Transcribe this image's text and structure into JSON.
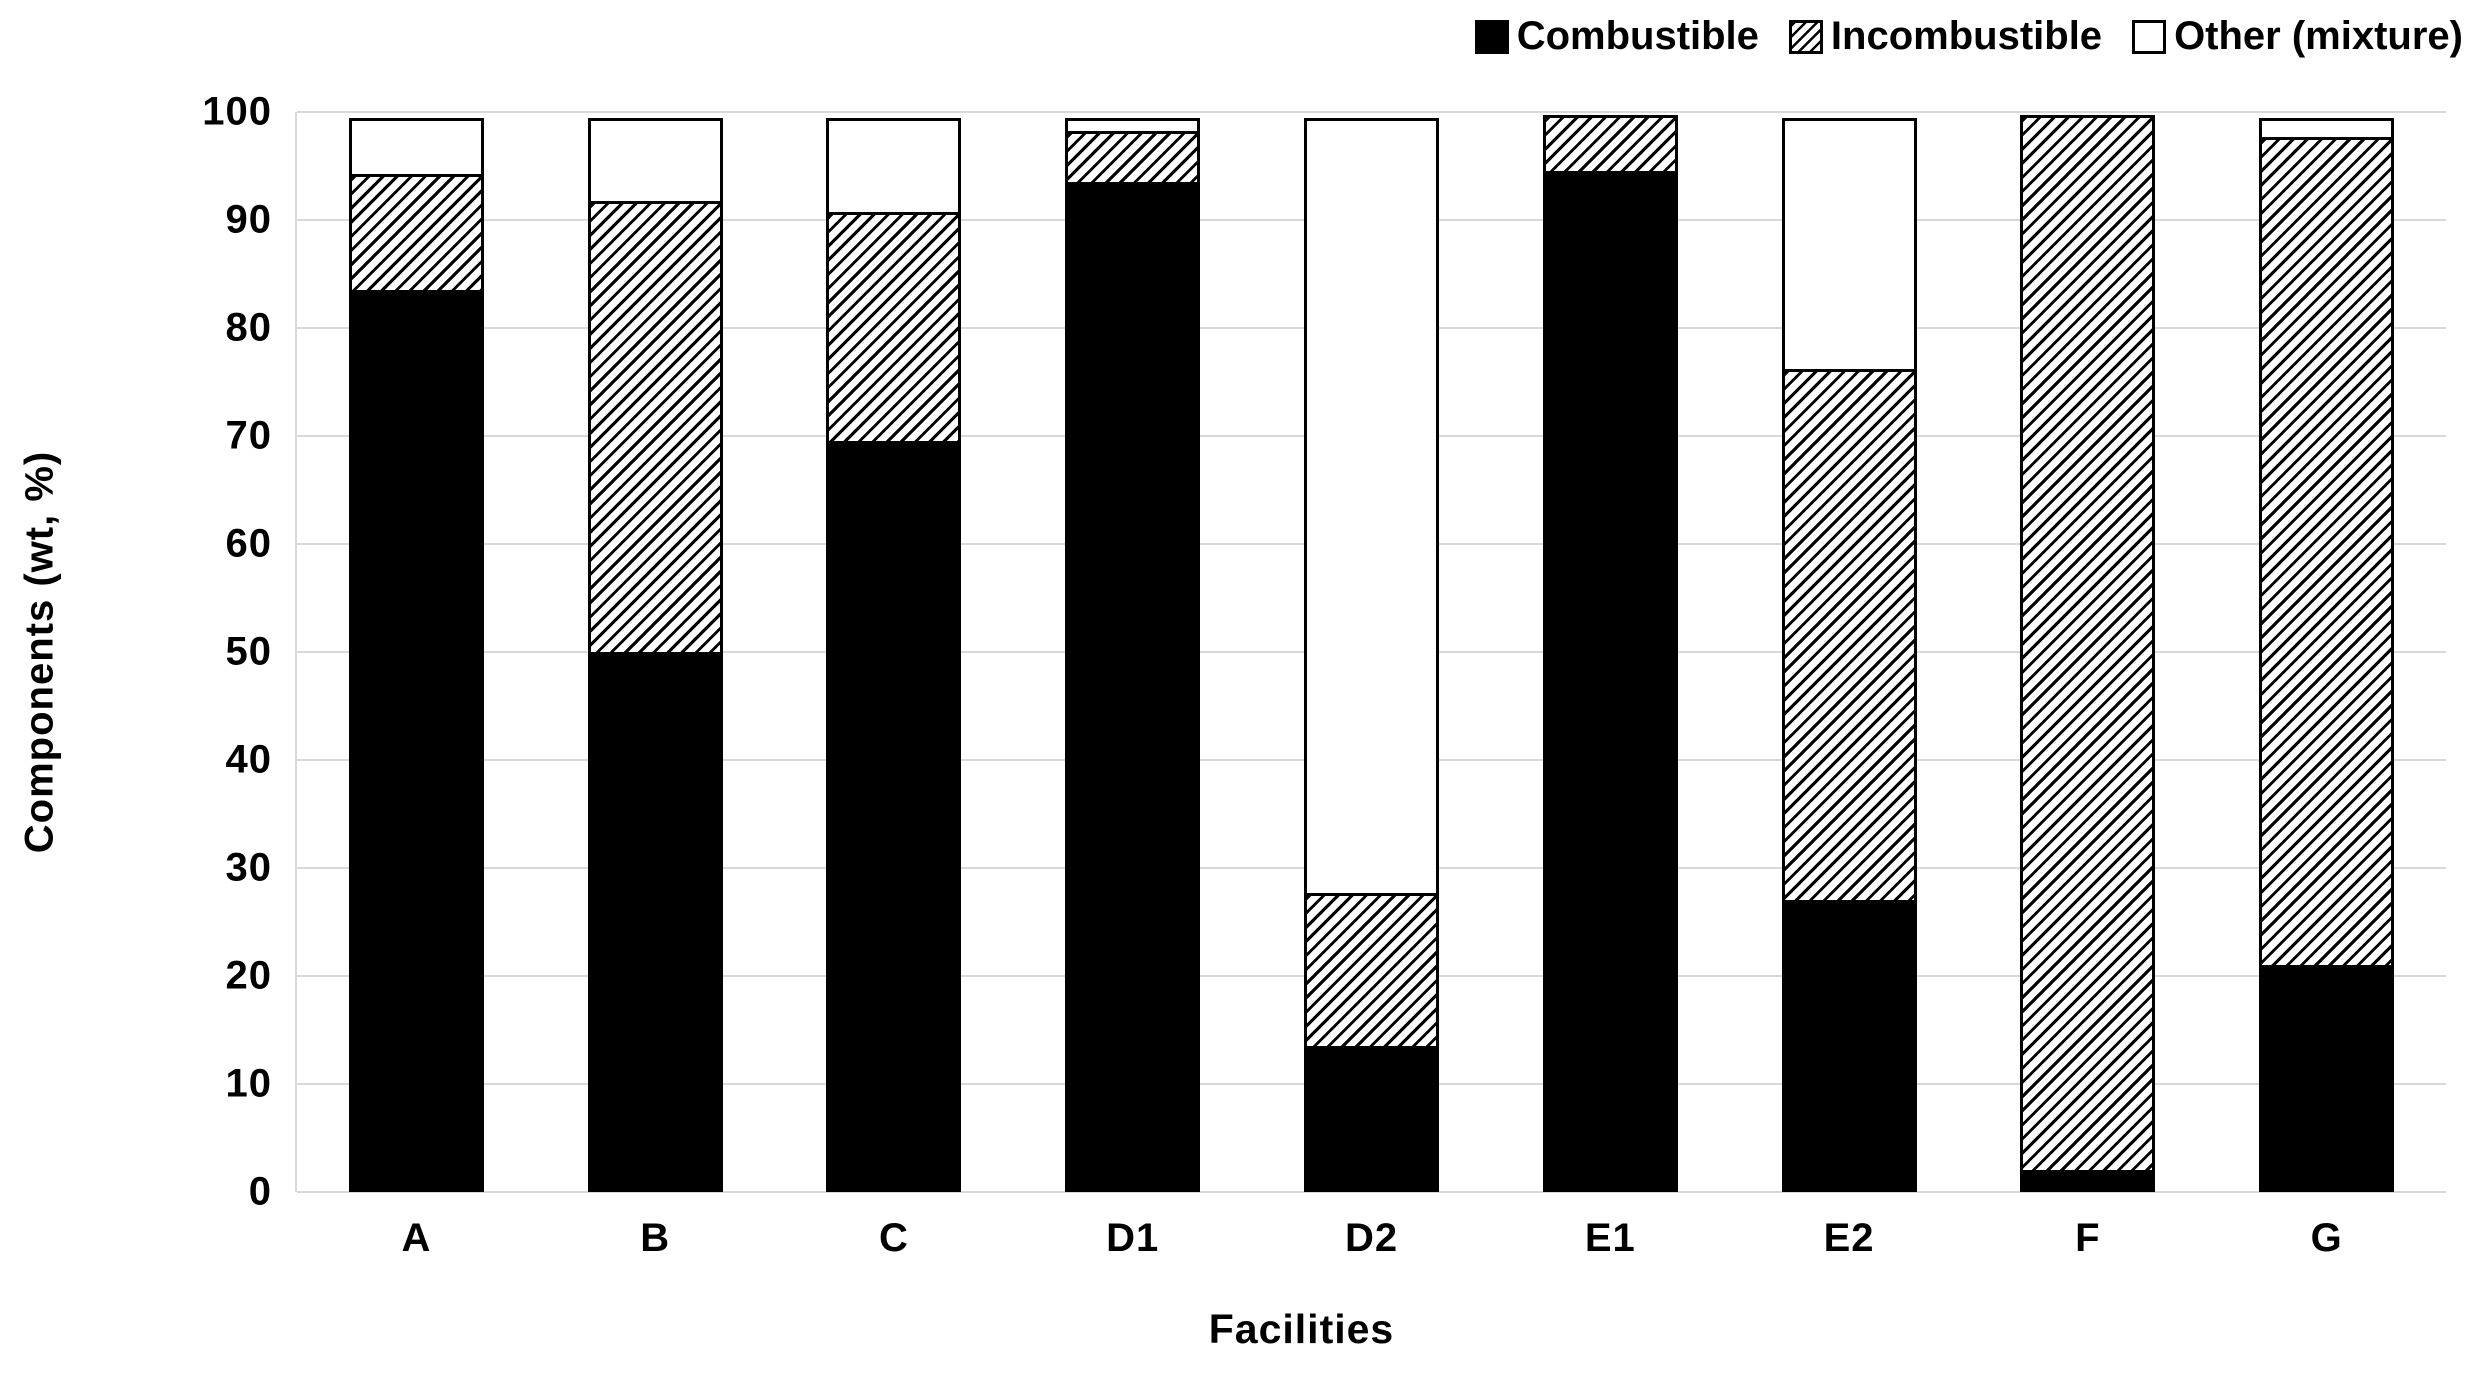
{
  "chart_data": {
    "type": "bar",
    "stacked": true,
    "title": "",
    "xlabel": "Facilities",
    "ylabel": "Components (wt, %)",
    "categories": [
      "A",
      "B",
      "C",
      "D1",
      "D2",
      "E1",
      "E2",
      "F",
      "G"
    ],
    "series": [
      {
        "name": "Combustible",
        "pattern": "solid",
        "values": [
          83.5,
          50,
          69.5,
          93.5,
          13.5,
          94.5,
          27,
          2,
          21
        ]
      },
      {
        "name": "Incombustible",
        "pattern": "hatch",
        "values": [
          11,
          42,
          21.5,
          5,
          14.5,
          5.5,
          49.5,
          98,
          77
        ]
      },
      {
        "name": "Other (mixture)",
        "pattern": "white",
        "values": [
          5.5,
          8,
          9,
          1.5,
          72,
          0,
          23.5,
          0,
          2
        ]
      }
    ],
    "ylim": [
      0,
      100
    ],
    "yticks": [
      0,
      10,
      20,
      30,
      40,
      50,
      60,
      70,
      80,
      90,
      100
    ],
    "grid": "horizontal",
    "legend_position": "top-right",
    "colors": {
      "bar_fill": "#000000",
      "bar_border": "#000000",
      "gridline": "#d9d9d9",
      "background": "#ffffff",
      "text": "#000000"
    }
  }
}
